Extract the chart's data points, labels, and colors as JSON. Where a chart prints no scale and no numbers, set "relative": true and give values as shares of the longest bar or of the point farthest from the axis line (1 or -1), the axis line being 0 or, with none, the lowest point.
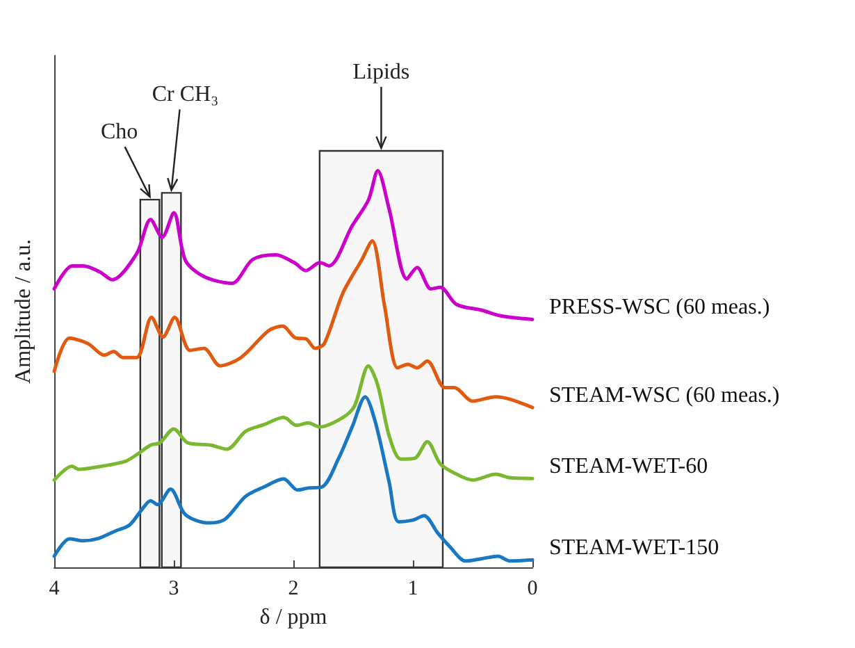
{
  "chart_data": {
    "type": "line",
    "relative": true,
    "xlabel": "δ / ppm",
    "ylabel": "Amplitude / a.u.",
    "xlim": [
      4,
      0
    ],
    "xticks": [
      4,
      3,
      2,
      1,
      0
    ],
    "grid": false,
    "legend": false,
    "marker": "none",
    "line_style": "solid",
    "bands": [
      {
        "axis": "x",
        "from": 3.28,
        "to": 3.12,
        "label": "Cho"
      },
      {
        "axis": "x",
        "from": 3.1,
        "to": 2.94,
        "label": "Cr CH₃"
      },
      {
        "axis": "x",
        "from": 1.78,
        "to": 0.75,
        "label": "Lipids"
      }
    ],
    "series": [
      {
        "name": "PRESS-WSC (60 meas.)",
        "color": "#cc00cc",
        "x": [
          4.0,
          3.85,
          3.756,
          3.62,
          3.515,
          3.31,
          3.194,
          3.097,
          3.0,
          2.903,
          2.748,
          2.515,
          2.34,
          2.148,
          1.992,
          1.895,
          1.779,
          1.701,
          1.508,
          1.372,
          1.294,
          1.198,
          1.05,
          0.965,
          0.849,
          0.771,
          0.636,
          0.422,
          0.267,
          0.0
        ],
        "values": [
          0.702,
          0.76,
          0.76,
          0.745,
          0.725,
          0.791,
          0.877,
          0.832,
          0.894,
          0.774,
          0.733,
          0.716,
          0.776,
          0.788,
          0.768,
          0.748,
          0.768,
          0.76,
          0.861,
          0.926,
          1.0,
          0.902,
          0.727,
          0.756,
          0.702,
          0.706,
          0.663,
          0.648,
          0.634,
          0.625
        ]
      },
      {
        "name": "STEAM-WSC (60 meas.)",
        "color": "#e05a10",
        "x": [
          4.0,
          3.872,
          3.717,
          3.581,
          3.503,
          3.427,
          3.31,
          3.186,
          3.09,
          2.992,
          2.864,
          2.748,
          2.613,
          2.438,
          2.206,
          2.09,
          1.98,
          1.895,
          1.817,
          1.741,
          1.585,
          1.43,
          1.341,
          1.236,
          1.128,
          1.043,
          0.965,
          0.88,
          0.733,
          0.655,
          0.5,
          0.306,
          0.19,
          0.0
        ],
        "values": [
          0.494,
          0.578,
          0.564,
          0.535,
          0.544,
          0.529,
          0.529,
          0.63,
          0.581,
          0.63,
          0.547,
          0.552,
          0.508,
          0.529,
          0.597,
          0.608,
          0.578,
          0.576,
          0.552,
          0.564,
          0.692,
          0.774,
          0.823,
          0.657,
          0.503,
          0.512,
          0.503,
          0.52,
          0.453,
          0.453,
          0.419,
          0.43,
          0.424,
          0.403
        ]
      },
      {
        "name": "STEAM-WET-60",
        "color": "#7ab830",
        "x": [
          4.0,
          3.852,
          3.794,
          3.601,
          3.407,
          3.31,
          3.194,
          3.116,
          3.0,
          2.884,
          2.69,
          2.555,
          2.399,
          2.244,
          2.081,
          1.973,
          1.876,
          1.779,
          1.585,
          1.488,
          1.372,
          1.294,
          1.198,
          1.101,
          0.985,
          0.88,
          0.771,
          0.655,
          0.5,
          0.306,
          0.19,
          0.0
        ],
        "values": [
          0.22,
          0.255,
          0.247,
          0.255,
          0.267,
          0.284,
          0.308,
          0.314,
          0.349,
          0.314,
          0.308,
          0.298,
          0.343,
          0.36,
          0.378,
          0.358,
          0.364,
          0.354,
          0.378,
          0.407,
          0.508,
          0.459,
          0.331,
          0.273,
          0.275,
          0.317,
          0.261,
          0.238,
          0.22,
          0.235,
          0.226,
          0.224
        ]
      },
      {
        "name": "STEAM-WET-150",
        "color": "#1a78c2",
        "x": [
          4.0,
          3.872,
          3.756,
          3.64,
          3.485,
          3.369,
          3.271,
          3.194,
          3.136,
          3.027,
          2.903,
          2.709,
          2.573,
          2.399,
          2.244,
          2.081,
          1.965,
          1.876,
          1.759,
          1.624,
          1.508,
          1.399,
          1.314,
          1.198,
          1.12,
          1.003,
          0.907,
          0.791,
          0.694,
          0.558,
          0.422,
          0.287,
          0.19,
          0.0
        ],
        "values": [
          0.028,
          0.072,
          0.067,
          0.072,
          0.092,
          0.107,
          0.144,
          0.168,
          0.158,
          0.197,
          0.133,
          0.112,
          0.121,
          0.179,
          0.203,
          0.223,
          0.195,
          0.2,
          0.203,
          0.273,
          0.354,
          0.43,
          0.366,
          0.214,
          0.115,
          0.119,
          0.13,
          0.086,
          0.053,
          0.016,
          0.022,
          0.028,
          0.016,
          0.019
        ]
      }
    ]
  }
}
